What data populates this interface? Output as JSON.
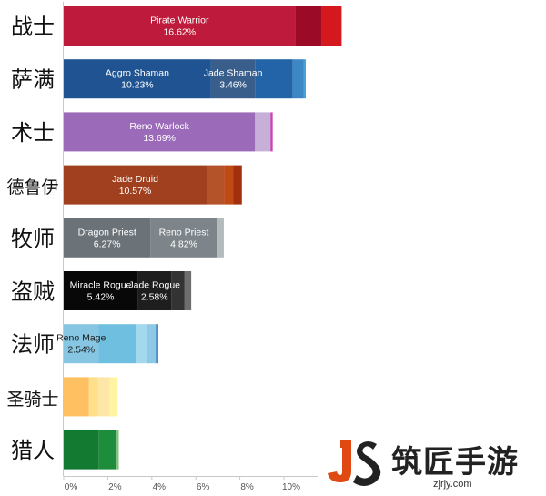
{
  "chart_data": {
    "type": "bar",
    "orientation": "horizontal",
    "stacked": true,
    "xlim": [
      0,
      11.5
    ],
    "x_ticks": [
      "0%",
      "2%",
      "4%",
      "6%",
      "8%",
      "10%"
    ],
    "grid": false,
    "categories": [
      "战士",
      "萨满",
      "术士",
      "德鲁伊",
      "牧师",
      "盗贼",
      "法师",
      "圣骑士",
      "猎人"
    ],
    "bars": [
      {
        "category": "战士",
        "segments": [
          {
            "name": "Pirate Warrior",
            "value": 16.62,
            "label": "16.62%",
            "color": "#be1a3b",
            "display_end": 10.52
          },
          {
            "name": "",
            "value": 1.2,
            "color": "#9b0b28",
            "display_end": 11.72
          },
          {
            "name": "",
            "value": 0.9,
            "color": "#d5171e",
            "display_end": 12.62
          }
        ]
      },
      {
        "category": "萨满",
        "segments": [
          {
            "name": "Aggro Shaman",
            "value": 10.23,
            "label": "10.23%",
            "color": "#1f5391",
            "display_end": 6.69
          },
          {
            "name": "Jade Shaman",
            "value": 3.46,
            "label": "3.46%",
            "color": "#3a5e8b",
            "display_end": 8.69
          },
          {
            "name": "",
            "value": 1.7,
            "color": "#2364a8",
            "display_end": 10.39
          },
          {
            "name": "",
            "value": 0.5,
            "color": "#3d88c4",
            "display_end": 10.89
          },
          {
            "name": "",
            "value": 0.1,
            "color": "#4a9fd8",
            "display_end": 10.99
          }
        ]
      },
      {
        "category": "术士",
        "segments": [
          {
            "name": "Reno Warlock",
            "value": 13.69,
            "label": "13.69%",
            "color": "#9b6ab8",
            "display_end": 8.69
          },
          {
            "name": "",
            "value": 0.7,
            "color": "#c6b0d8",
            "display_end": 9.39
          },
          {
            "name": "",
            "value": 0.1,
            "color": "#c842b8",
            "display_end": 9.49
          }
        ]
      },
      {
        "category": "德鲁伊",
        "segments": [
          {
            "name": "Jade Druid",
            "value": 10.57,
            "label": "10.57%",
            "color": "#a1401f",
            "display_end": 6.49
          },
          {
            "name": "",
            "value": 0.8,
            "color": "#b4532a",
            "display_end": 7.29
          },
          {
            "name": "",
            "value": 0.4,
            "color": "#c04a14",
            "display_end": 7.69
          },
          {
            "name": "",
            "value": 0.4,
            "color": "#a32f0c",
            "display_end": 8.09
          }
        ]
      },
      {
        "category": "牧师",
        "segments": [
          {
            "name": "Dragon Priest",
            "value": 6.27,
            "label": "6.27%",
            "color": "#6b7378",
            "display_end": 3.94
          },
          {
            "name": "Reno Priest",
            "value": 4.82,
            "label": "4.82%",
            "color": "#7d858a",
            "display_end": 6.97
          },
          {
            "name": "",
            "value": 0.3,
            "color": "#b5babd",
            "display_end": 7.27
          }
        ]
      },
      {
        "category": "盗贼",
        "segments": [
          {
            "name": "Miracle Rogue",
            "value": 5.42,
            "label": "5.42%",
            "color": "#080808",
            "display_end": 3.35
          },
          {
            "name": "Jade Rogue",
            "value": 2.58,
            "label": "2.58%",
            "color": "#1e1e1e",
            "display_end": 4.89
          },
          {
            "name": "",
            "value": 0.6,
            "color": "#333333",
            "display_end": 5.49
          },
          {
            "name": "",
            "value": 0.3,
            "color": "#6e6e6e",
            "display_end": 5.79
          }
        ]
      },
      {
        "category": "法师",
        "segments": [
          {
            "name": "Reno Mage",
            "value": 2.54,
            "label": "2.54%",
            "color": "#86c6e2",
            "label_dark": true,
            "display_end": 1.59
          },
          {
            "name": "",
            "value": 1.7,
            "color": "#6fbfe0",
            "display_end": 3.29
          },
          {
            "name": "",
            "value": 0.5,
            "color": "#a4d8ee",
            "display_end": 3.79
          },
          {
            "name": "",
            "value": 0.4,
            "color": "#8dc8e5",
            "display_end": 4.19
          },
          {
            "name": "",
            "value": 0.1,
            "color": "#2c72b8",
            "display_end": 4.29
          }
        ]
      },
      {
        "category": "圣骑士",
        "segments": [
          {
            "name": "",
            "value": 1.15,
            "color": "#ffc062",
            "display_end": 1.15
          },
          {
            "name": "",
            "value": 0.4,
            "color": "#ffe08a",
            "display_end": 1.55
          },
          {
            "name": "",
            "value": 0.55,
            "color": "#fde6a8",
            "display_end": 2.1
          },
          {
            "name": "",
            "value": 0.35,
            "color": "#fff3a4",
            "display_end": 2.45
          }
        ]
      },
      {
        "category": "猎人",
        "segments": [
          {
            "name": "",
            "value": 1.6,
            "color": "#127a31",
            "display_end": 1.6
          },
          {
            "name": "",
            "value": 0.8,
            "color": "#1d8d3c",
            "display_end": 2.4
          },
          {
            "name": "",
            "value": 0.1,
            "color": "#7fbf7f",
            "display_end": 2.5
          }
        ]
      }
    ]
  },
  "watermark": {
    "text": "筑匠手游",
    "url": "zjrjy.com",
    "logo_letters": "JS"
  }
}
